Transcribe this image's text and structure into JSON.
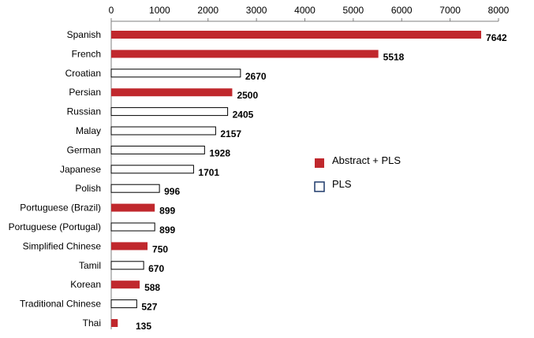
{
  "chart_data": {
    "type": "bar",
    "orientation": "horizontal",
    "xlim": [
      0,
      8000
    ],
    "xticks": [
      0,
      1000,
      2000,
      3000,
      4000,
      5000,
      6000,
      7000,
      8000
    ],
    "axis_position": "top",
    "grid": false,
    "legend_placement": "right",
    "series": [
      {
        "name": "Abstract + PLS",
        "style": "filled",
        "color": "#C0282D"
      },
      {
        "name": "PLS",
        "style": "outline",
        "color": "#1F3A6B"
      }
    ],
    "categories": [
      "Spanish",
      "French",
      "Croatian",
      "Persian",
      "Russian",
      "Malay",
      "German",
      "Japanese",
      "Polish",
      "Portuguese (Brazil)",
      "Portuguese (Portugal)",
      "Simplified Chinese",
      "Tamil",
      "Korean",
      "Traditional Chinese",
      "Thai"
    ],
    "values": [
      7642,
      5518,
      2670,
      2500,
      2405,
      2157,
      1928,
      1701,
      996,
      899,
      899,
      750,
      670,
      588,
      527,
      135
    ],
    "series_of_category": [
      "Abstract + PLS",
      "Abstract + PLS",
      "PLS",
      "Abstract + PLS",
      "PLS",
      "PLS",
      "PLS",
      "PLS",
      "PLS",
      "Abstract + PLS",
      "PLS",
      "Abstract + PLS",
      "PLS",
      "Abstract + PLS",
      "PLS",
      "Abstract + PLS"
    ]
  }
}
